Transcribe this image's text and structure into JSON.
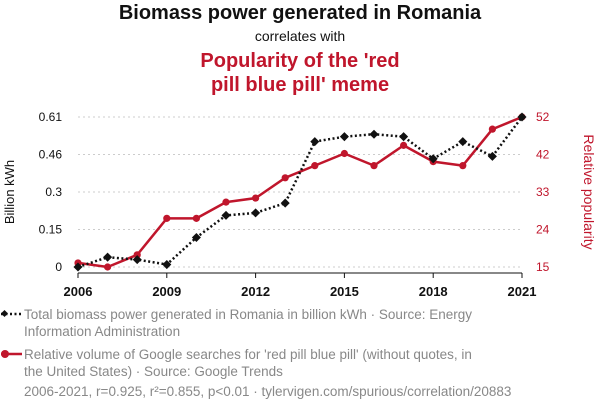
{
  "header": {
    "title": "Biomass power generated in Romania",
    "subtitle": "correlates with",
    "title2_line1": "Popularity of the 'red",
    "title2_line2": "pill blue pill' meme"
  },
  "colors": {
    "series1": "#111111",
    "series2": "#c0162c",
    "muted": "#888888"
  },
  "legend": {
    "series1": "Total biomass power generated in Romania in billion kWh · Source: Energy Information Administration",
    "series2": "Relative volume of Google searches for 'red pill blue pill' (without quotes, in the United States) · Source: Google Trends"
  },
  "footer": "2006-2021, r=0.925, r²=0.855, p<0.01 · tylervigen.com/spurious/correlation/20883",
  "chart_data": {
    "type": "line",
    "x": [
      2006,
      2007,
      2008,
      2009,
      2010,
      2011,
      2012,
      2013,
      2014,
      2015,
      2016,
      2017,
      2018,
      2019,
      2020,
      2021
    ],
    "xlim": [
      2006,
      2021
    ],
    "xticks": [
      "2006",
      "2009",
      "2012",
      "2015",
      "2018",
      "2021"
    ],
    "ylabel_left": "Billion kWh",
    "ylabel_right": "Relative popularity",
    "ylim_left": [
      0,
      0.61
    ],
    "yticks_left": [
      "0",
      "0.15",
      "0.3",
      "0.46",
      "0.61"
    ],
    "ylim_right": [
      15,
      52
    ],
    "yticks_right": [
      "15",
      "24",
      "33",
      "42",
      "52"
    ],
    "series": [
      {
        "name": "Total biomass power generated in Romania in billion kWh",
        "axis": "left",
        "style": "dotted",
        "marker": "diamond",
        "values": [
          0.0,
          0.04,
          0.03,
          0.01,
          0.12,
          0.21,
          0.22,
          0.26,
          0.51,
          0.53,
          0.54,
          0.53,
          0.44,
          0.51,
          0.45,
          0.61
        ]
      },
      {
        "name": "Relative volume of Google searches for 'red pill blue pill'",
        "axis": "right",
        "style": "solid",
        "marker": "circle",
        "values": [
          16,
          15,
          18,
          27,
          27,
          31,
          32,
          37,
          40,
          43,
          40,
          45,
          41,
          40,
          49,
          52
        ]
      }
    ]
  }
}
